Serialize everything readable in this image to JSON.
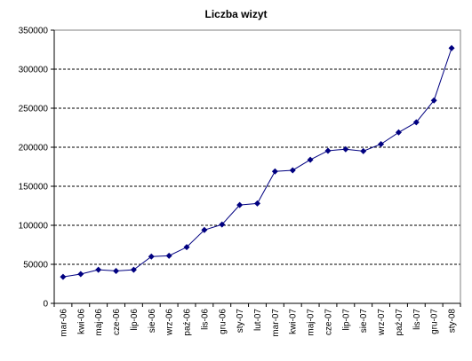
{
  "chart_data": {
    "type": "line",
    "title": "Liczba wizyt",
    "categories": [
      "mar-06",
      "kwi-06",
      "maj-06",
      "cze-06",
      "lip-06",
      "sie-06",
      "wrz-06",
      "paź-06",
      "lis-06",
      "gru-06",
      "sty-07",
      "lut-07",
      "mar-07",
      "kwi-07",
      "maj-07",
      "cze-07",
      "lip-07",
      "sie-07",
      "wrz-07",
      "paź-07",
      "lis-07",
      "gru-07",
      "sty-08"
    ],
    "series": [
      {
        "values": [
          34000,
          37500,
          43000,
          41500,
          43000,
          60000,
          61000,
          72000,
          94000,
          101000,
          126000,
          128000,
          169000,
          170500,
          184000,
          195500,
          197500,
          195000,
          204000,
          219000,
          232000,
          260000,
          327000
        ],
        "color": "#000080"
      }
    ],
    "ylim": [
      0,
      350000
    ],
    "yticks": [
      0,
      50000,
      100000,
      150000,
      200000,
      250000,
      300000,
      350000
    ],
    "grid": "horizontal dashed",
    "legend": "none"
  }
}
